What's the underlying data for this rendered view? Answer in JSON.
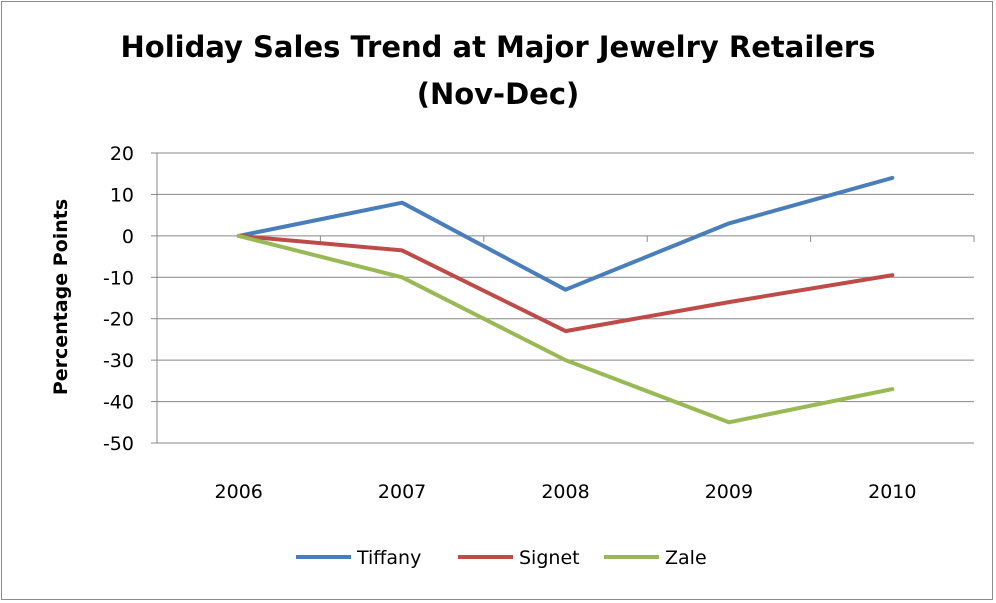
{
  "chart_data": {
    "type": "line",
    "title": [
      "Holiday Sales Trend at Major Jewelry Retailers",
      "(Nov-Dec)"
    ],
    "xlabel": "",
    "ylabel": "Percentage Points",
    "categories": [
      "2006",
      "2007",
      "2008",
      "2009",
      "2010"
    ],
    "ylim": [
      -50,
      20
    ],
    "yticks": [
      20,
      10,
      0,
      -10,
      -20,
      -30,
      -40,
      -50
    ],
    "grid": true,
    "legend": "bottom",
    "series": [
      {
        "name": "Tiffany",
        "color": "#4a7ebb",
        "values": [
          0,
          8,
          -13,
          3,
          14
        ]
      },
      {
        "name": "Signet",
        "color": "#be4b48",
        "values": [
          0,
          -3.5,
          -23,
          -16,
          -9.5
        ]
      },
      {
        "name": "Zale",
        "color": "#98b954",
        "values": [
          0,
          -10,
          -30,
          -45,
          -37
        ]
      }
    ]
  }
}
